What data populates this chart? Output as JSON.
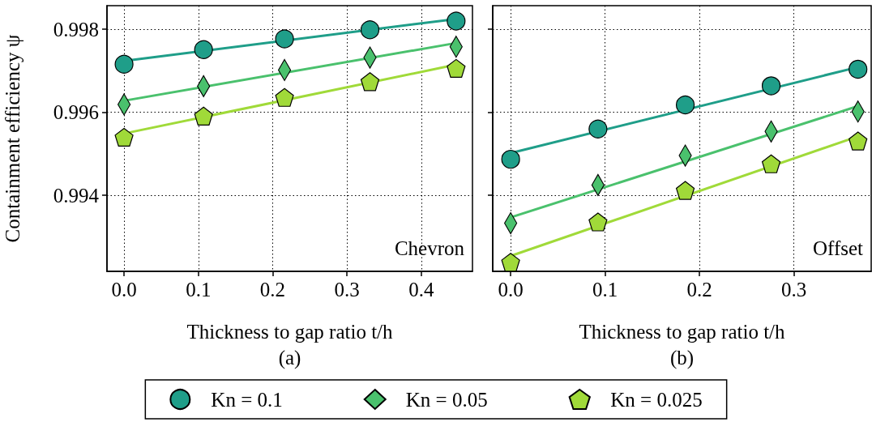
{
  "chart_data": [
    {
      "type": "scatter",
      "xlabel": "Thickness to gap ratio t/h",
      "ylabel": "Containment efficiency ψ",
      "annotations": [
        "Chevron",
        "(a)"
      ],
      "xlim": [
        -0.023,
        0.469
      ],
      "ylim": [
        0.99217,
        0.99857
      ],
      "xticks": [
        {
          "value": 0,
          "label": "0.0"
        },
        0.1,
        0.2,
        0.3,
        0.4
      ],
      "yticks": [
        0.994,
        0.996,
        0.998
      ],
      "grid": true,
      "legend": "bottom",
      "series": [
        {
          "type": "line",
          "color": "#1f9e89",
          "marker": "none",
          "x": [
            0,
            0.447
          ],
          "values": [
            0.99724,
            0.99825
          ]
        },
        {
          "type": "line",
          "color": "#4ac16d",
          "marker": "none",
          "x": [
            0,
            0.447
          ],
          "values": [
            0.99628,
            0.99767
          ]
        },
        {
          "type": "line",
          "color": "#a0da39",
          "marker": "none",
          "x": [
            0,
            0.447
          ],
          "values": [
            0.99549,
            0.99715
          ]
        },
        {
          "name": "Kn = 0.1",
          "color": "#1f9e89",
          "marker": "circle",
          "x": [
            0,
            0.107,
            0.216,
            0.331,
            0.447
          ],
          "values": [
            0.99716,
            0.99751,
            0.99777,
            0.99799,
            0.9982
          ]
        },
        {
          "name": "Kn = 0.05",
          "color": "#4ac16d",
          "marker": "diamond",
          "x": [
            0,
            0.107,
            0.216,
            0.331,
            0.447
          ],
          "values": [
            0.99619,
            0.99663,
            0.99702,
            0.99732,
            0.99758
          ]
        },
        {
          "name": "Kn = 0.025",
          "color": "#a0da39",
          "x": [
            0,
            0.107,
            0.216,
            0.331,
            0.447
          ],
          "values": [
            0.9954,
            0.99591,
            0.99636,
            0.99674,
            0.99706
          ]
        }
      ]
    },
    {
      "type": "scatter",
      "xlabel": "Thickness to gap ratio t/h",
      "annotations": [
        "Offset",
        "(b)"
      ],
      "xlim": [
        -0.019,
        0.382
      ],
      "ylim": [
        0.99217,
        0.99857
      ],
      "xticks": [
        {
          "value": 0,
          "label": "0.0"
        },
        0.1,
        0.2,
        0.3
      ],
      "yticks": [
        0.994,
        0.996,
        0.998
      ],
      "tick_labels": "x",
      "grid": true,
      "series": [
        {
          "type": "line",
          "color": "#1f9e89",
          "marker": "none",
          "x": [
            0,
            0.368
          ],
          "values": [
            0.99502,
            0.99709
          ]
        },
        {
          "type": "line",
          "color": "#4ac16d",
          "marker": "none",
          "x": [
            0,
            0.368
          ],
          "values": [
            0.99347,
            0.99615
          ]
        },
        {
          "type": "line",
          "color": "#a0da39",
          "marker": "none",
          "x": [
            0,
            0.368
          ],
          "values": [
            0.99254,
            0.99542
          ]
        },
        {
          "color": "#1f9e89",
          "marker": "circle",
          "x": [
            0,
            0.0925,
            0.185,
            0.276,
            0.368
          ],
          "values": [
            0.99487,
            0.9956,
            0.99618,
            0.99664,
            0.99704
          ]
        },
        {
          "color": "#4ac16d",
          "marker": "diamond",
          "x": [
            0,
            0.0925,
            0.185,
            0.276,
            0.368
          ],
          "values": [
            0.99333,
            0.99425,
            0.99496,
            0.99554,
            0.99602
          ]
        },
        {
          "color": "#a0da39",
          "x": [
            0,
            0.0925,
            0.185,
            0.276,
            0.368
          ],
          "values": [
            0.99239,
            0.99336,
            0.99412,
            0.99476,
            0.99531
          ]
        }
      ]
    }
  ]
}
